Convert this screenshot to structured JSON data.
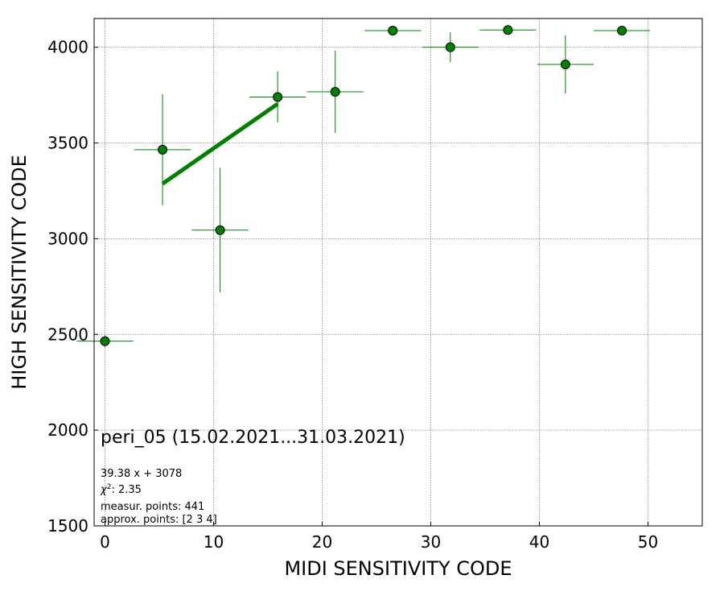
{
  "chart_data": {
    "type": "scatter",
    "title": "peri_05 (15.02.2021...31.03.2021)",
    "xlabel": "MIDI SENSITIVITY CODE",
    "ylabel": "HIGH SENSITIVITY CODE",
    "xlim": [
      -1,
      55
    ],
    "ylim": [
      1500,
      4150
    ],
    "x_ticks": [
      0,
      10,
      20,
      30,
      40,
      50
    ],
    "y_ticks": [
      1500,
      2000,
      2500,
      3000,
      3500,
      4000
    ],
    "grid": true,
    "color": "#008000",
    "series": [
      {
        "points": [
          {
            "x": 0.0,
            "y": 2465,
            "xerr": 2.6,
            "yerr": 30
          },
          {
            "x": 5.3,
            "y": 3465,
            "xerr": 2.6,
            "yerr": 290
          },
          {
            "x": 10.6,
            "y": 3045,
            "xerr": 2.6,
            "yerr": 325
          },
          {
            "x": 15.9,
            "y": 3740,
            "xerr": 2.6,
            "yerr": 133
          },
          {
            "x": 21.2,
            "y": 3767,
            "xerr": 2.6,
            "yerr": 215
          },
          {
            "x": 26.5,
            "y": 4087,
            "xerr": 2.6,
            "yerr": 8
          },
          {
            "x": 31.8,
            "y": 4000,
            "xerr": 2.6,
            "yerr": 78
          },
          {
            "x": 37.1,
            "y": 4090,
            "xerr": 2.6,
            "yerr": 8
          },
          {
            "x": 42.4,
            "y": 3910,
            "xerr": 2.6,
            "yerr": 152
          },
          {
            "x": 47.6,
            "y": 4087,
            "xerr": 2.6,
            "yerr": 8
          }
        ]
      }
    ],
    "fit": {
      "slope": 39.38,
      "intercept": 3078,
      "x_range": [
        5.3,
        15.9
      ]
    },
    "annotations": {
      "equation": "39.38 x + 3078",
      "chi2": ": 2.35",
      "measur_points": "measur. points: 441",
      "approx_points": "approx. points: [2 3 4]"
    }
  }
}
